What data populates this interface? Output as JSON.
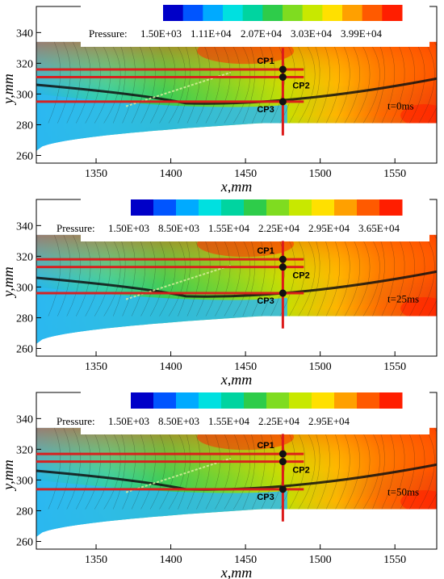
{
  "chart_data": [
    {
      "type": "heatmap",
      "xlabel": "x,mm",
      "ylabel": "y,mm",
      "xlim": [
        1310,
        1578
      ],
      "ylim": [
        255,
        357
      ],
      "xticks": [
        "1350",
        "1400",
        "1450",
        "1500",
        "1550"
      ],
      "yticks": [
        "260",
        "280",
        "300",
        "320",
        "340"
      ],
      "legend_title": "Pressure:",
      "legend_values": [
        "1.50E+03",
        "1.11E+04",
        "2.07E+04",
        "3.03E+04",
        "3.99E+04"
      ],
      "time_label": "t=0ms",
      "probe_labels": [
        "CP1",
        "CP2",
        "CP3"
      ],
      "probes": [
        {
          "x": 1475,
          "y": 316
        },
        {
          "x": 1475,
          "y": 311
        },
        {
          "x": 1475,
          "y": 295
        }
      ]
    },
    {
      "type": "heatmap",
      "xlabel": "x,mm",
      "ylabel": "y,mm",
      "xlim": [
        1310,
        1578
      ],
      "ylim": [
        255,
        357
      ],
      "xticks": [
        "1350",
        "1400",
        "1450",
        "1500",
        "1550"
      ],
      "yticks": [
        "260",
        "280",
        "300",
        "320",
        "340"
      ],
      "legend_title": "Pressure:",
      "legend_values": [
        "1.50E+03",
        "8.50E+03",
        "1.55E+04",
        "2.25E+04",
        "2.95E+04",
        "3.65E+04"
      ],
      "time_label": "t=25ms",
      "probe_labels": [
        "CP1",
        "CP2",
        "CP3"
      ],
      "probes": [
        {
          "x": 1475,
          "y": 318
        },
        {
          "x": 1475,
          "y": 313
        },
        {
          "x": 1475,
          "y": 296
        }
      ]
    },
    {
      "type": "heatmap",
      "xlabel": "x,mm",
      "ylabel": "y,mm",
      "xlim": [
        1310,
        1578
      ],
      "ylim": [
        255,
        357
      ],
      "xticks": [
        "1350",
        "1400",
        "1450",
        "1500",
        "1550"
      ],
      "yticks": [
        "260",
        "280",
        "300",
        "320",
        "340"
      ],
      "legend_title": "Pressure:",
      "legend_values": [
        "1.50E+03",
        "8.50E+03",
        "1.55E+04",
        "2.25E+04",
        "2.95E+04"
      ],
      "time_label": "t=50ms",
      "probe_labels": [
        "CP1",
        "CP2",
        "CP3"
      ],
      "probes": [
        {
          "x": 1475,
          "y": 317
        },
        {
          "x": 1475,
          "y": 312
        },
        {
          "x": 1475,
          "y": 294
        }
      ]
    }
  ]
}
